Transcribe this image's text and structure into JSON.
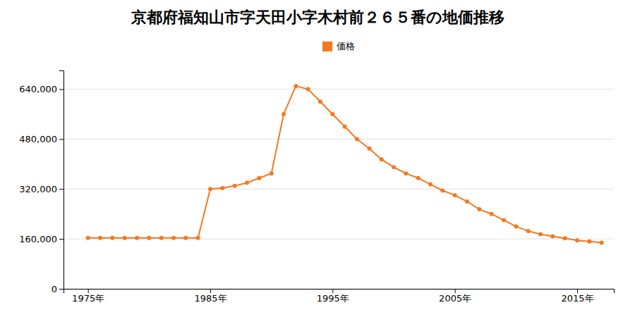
{
  "chart_data": {
    "type": "line",
    "title": "京都府福知山市字天田小字木村前２６５番の地価推移",
    "x": [
      1975,
      1976,
      1977,
      1978,
      1979,
      1980,
      1981,
      1982,
      1983,
      1984,
      1985,
      1986,
      1987,
      1988,
      1989,
      1990,
      1991,
      1992,
      1993,
      1994,
      1995,
      1996,
      1997,
      1998,
      1999,
      2000,
      2001,
      2002,
      2003,
      2004,
      2005,
      2006,
      2007,
      2008,
      2009,
      2010,
      2011,
      2012,
      2013,
      2014,
      2015,
      2016,
      2017
    ],
    "series": [
      {
        "name": "価格",
        "color": "#f47920",
        "marker": "circle",
        "values": [
          163000,
          163000,
          163000,
          163000,
          163000,
          163000,
          163000,
          163000,
          163000,
          163000,
          320000,
          323000,
          330000,
          340000,
          355000,
          370000,
          560000,
          650000,
          640000,
          600000,
          560000,
          520000,
          480000,
          450000,
          415000,
          390000,
          370000,
          355000,
          335000,
          315000,
          300000,
          280000,
          255000,
          240000,
          220000,
          200000,
          185000,
          175000,
          168000,
          162000,
          155000,
          152000,
          148000
        ]
      }
    ],
    "xlim": [
      1973,
      2018
    ],
    "xticks": [
      {
        "value": 1975,
        "label": "1975年"
      },
      {
        "value": 1985,
        "label": "1985年"
      },
      {
        "value": 1995,
        "label": "1995年"
      },
      {
        "value": 2005,
        "label": "2005年"
      },
      {
        "value": 2015,
        "label": "2015年"
      }
    ],
    "ylim": [
      0,
      700000
    ],
    "yticks": [
      0,
      {
        "value": 160000,
        "label": "160,000"
      },
      {
        "value": 320000,
        "label": "320,000"
      },
      {
        "value": 480000,
        "label": "480,000"
      },
      {
        "value": 640000,
        "label": "640,000"
      }
    ],
    "grid": "y",
    "legend": "top"
  }
}
